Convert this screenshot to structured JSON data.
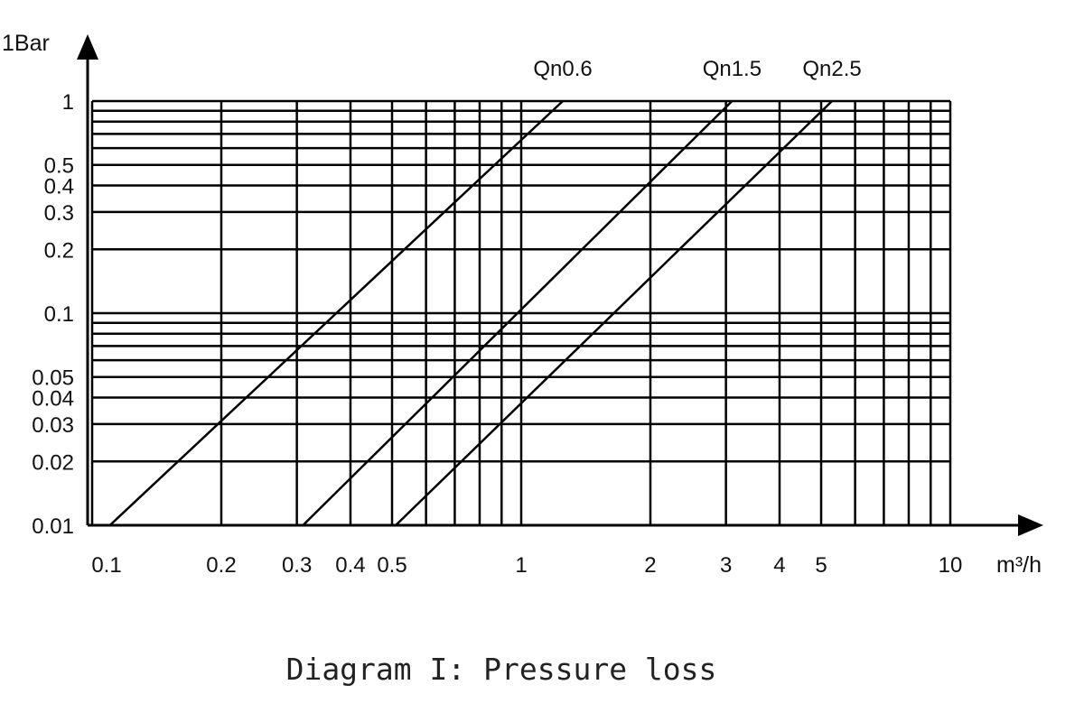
{
  "caption": "Diagram I: Pressure loss",
  "chart_data": {
    "type": "line",
    "title": "",
    "xlabel": "m³/h",
    "ylabel": "1Bar",
    "x_scale": "log",
    "y_scale": "log",
    "xlim": [
      0.1,
      10
    ],
    "ylim": [
      0.01,
      1
    ],
    "grid": true,
    "x_tick_labels": [
      "0.1",
      "0.2",
      "0.3",
      "0.4",
      "0.5",
      "1",
      "2",
      "3",
      "4",
      "5",
      "10"
    ],
    "x_tick_values": [
      0.1,
      0.2,
      0.3,
      0.4,
      0.5,
      1,
      2,
      3,
      4,
      5,
      10
    ],
    "y_tick_labels": [
      "0.01",
      "0.02",
      "0.03",
      "0.04",
      "0.05",
      "0.1",
      "0.2",
      "0.3",
      "0.4",
      "0.5",
      "1"
    ],
    "y_tick_values": [
      0.01,
      0.02,
      0.03,
      0.04,
      0.05,
      0.1,
      0.2,
      0.3,
      0.4,
      0.5,
      1
    ],
    "series": [
      {
        "name": "Qn0.6",
        "x": [
          0.11,
          1.25
        ],
        "y": [
          0.01,
          1
        ]
      },
      {
        "name": "Qn1.5",
        "x": [
          0.31,
          3.1
        ],
        "y": [
          0.01,
          1
        ]
      },
      {
        "name": "Qn2.5",
        "x": [
          0.51,
          5.3
        ],
        "y": [
          0.01,
          1
        ]
      }
    ]
  }
}
